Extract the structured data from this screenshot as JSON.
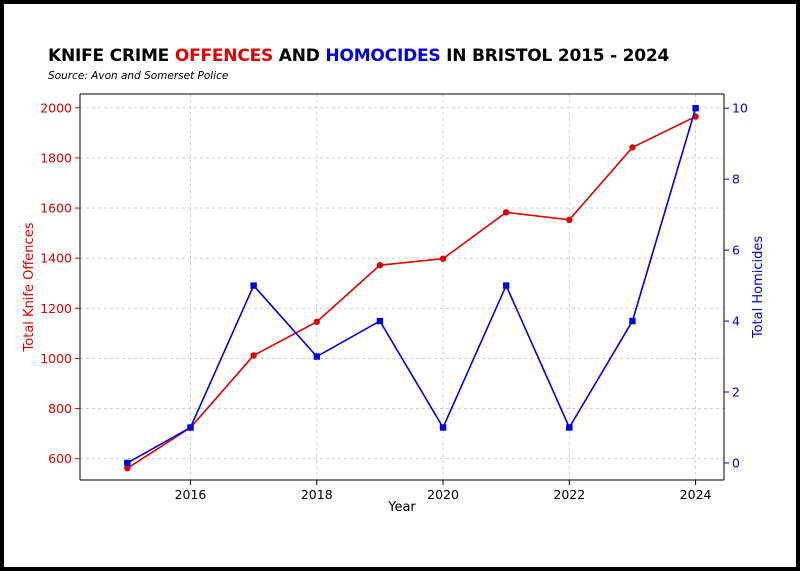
{
  "header": {
    "title_part1": "KNIFE CRIME ",
    "title_part2": "OFFENCES",
    "title_part3": " AND ",
    "title_part4": "HOMOCIDES",
    "title_part5": " IN BRISTOL 2015 - 2024",
    "source": "Source: Avon and Somerset Police"
  },
  "chart_data": {
    "type": "line",
    "title": "KNIFE CRIME OFFENCES AND HOMOCIDES IN BRISTOL 2015 - 2024",
    "subtitle": "Source: Avon and Somerset Police",
    "xlabel": "Year",
    "ylabel_left": "Total Knife Offences",
    "ylabel_right": "Total Homicides",
    "x": [
      2015,
      2016,
      2017,
      2018,
      2019,
      2020,
      2021,
      2022,
      2023,
      2024
    ],
    "x_ticks": [
      "2016",
      "2018",
      "2020",
      "2022",
      "2024"
    ],
    "y_left_ticks": [
      "600",
      "800",
      "1000",
      "1200",
      "1400",
      "1600",
      "1800",
      "2000"
    ],
    "y_right_ticks": [
      "0",
      "2",
      "4",
      "6",
      "8",
      "10"
    ],
    "xlim": [
      2014.25,
      2024.45
    ],
    "ylim_left": [
      515,
      2055
    ],
    "ylim_right": [
      -0.48,
      10.4
    ],
    "grid": true,
    "series": [
      {
        "name": "Total Knife Offences",
        "axis": "left",
        "color": "#e00000",
        "marker": "circle",
        "values": [
          562,
          724,
          1012,
          1146,
          1372,
          1398,
          1583,
          1553,
          1842,
          1965
        ]
      },
      {
        "name": "Total Homicides",
        "axis": "right",
        "color": "#0000e0",
        "marker": "square",
        "values": [
          0,
          1,
          5,
          3,
          4,
          1,
          5,
          1,
          4,
          10
        ]
      }
    ]
  }
}
